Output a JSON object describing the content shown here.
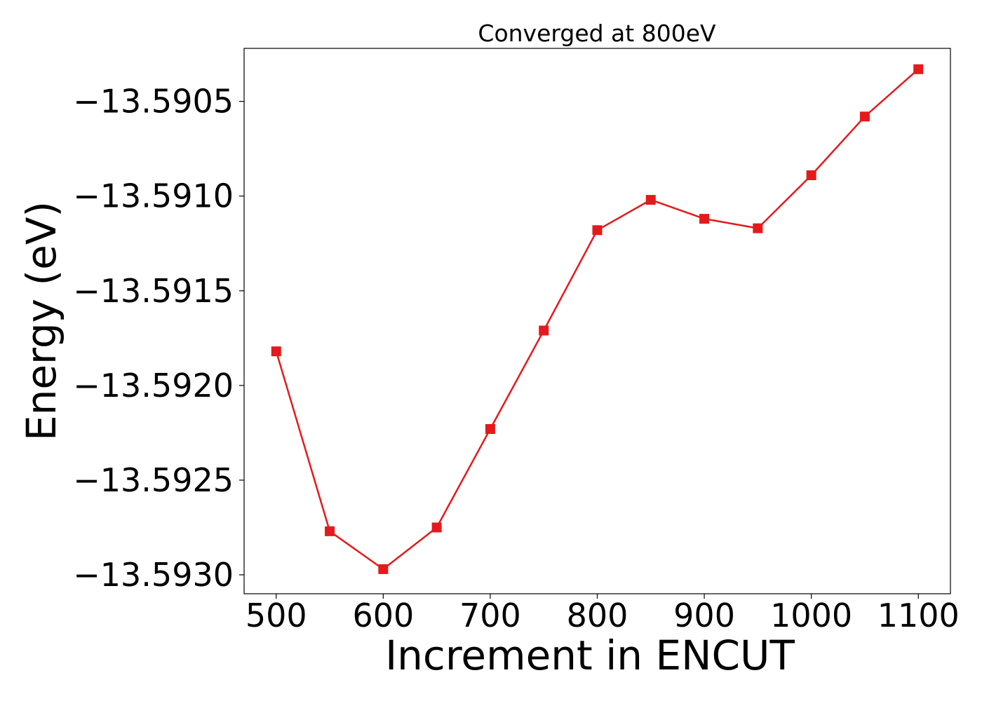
{
  "chart_data": {
    "type": "line",
    "title": "Converged at 800eV",
    "xlabel": "Increment in ENCUT",
    "ylabel": "Energy (eV)",
    "xlim": [
      470,
      1130
    ],
    "ylim": [
      -13.5931,
      -13.59022
    ],
    "x_ticks": [
      500,
      600,
      700,
      800,
      900,
      1000,
      1100
    ],
    "x_tick_labels": [
      "500",
      "600",
      "700",
      "800",
      "900",
      "1000",
      "1100"
    ],
    "y_ticks": [
      -13.5905,
      -13.591,
      -13.5915,
      -13.592,
      -13.5925,
      -13.593
    ],
    "y_tick_labels": [
      "−13.5905",
      "−13.5910",
      "−13.5915",
      "−13.5920",
      "−13.5925",
      "−13.5930"
    ],
    "grid": false,
    "series": [
      {
        "color": "#e41a1c",
        "marker": "square",
        "x": [
          500,
          550,
          600,
          650,
          700,
          750,
          800,
          850,
          900,
          950,
          1000,
          1050,
          1100
        ],
        "y": [
          -13.59182,
          -13.59277,
          -13.59297,
          -13.59275,
          -13.59223,
          -13.59171,
          -13.59118,
          -13.59102,
          -13.59112,
          -13.59117,
          -13.59089,
          -13.59058,
          -13.59033
        ]
      }
    ]
  }
}
